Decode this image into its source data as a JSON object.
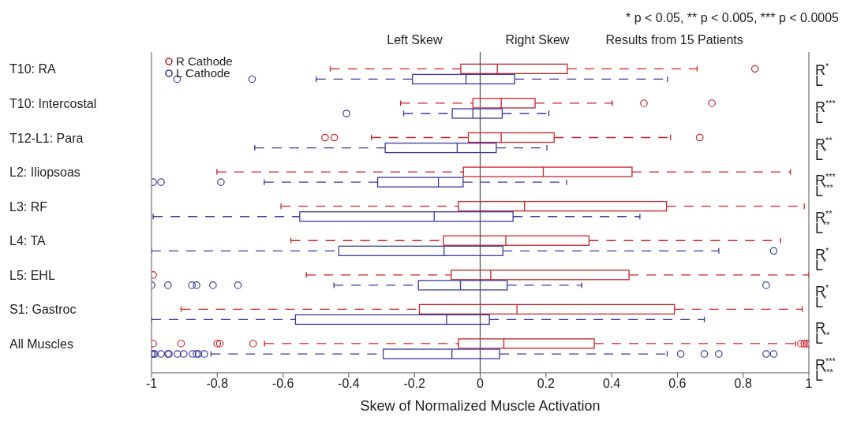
{
  "chart_data": {
    "type": "box",
    "orientation": "horizontal",
    "categories": [
      "T10: RA",
      "T10: Intercostal",
      "T12-L1: Para",
      "L2: Iliopsoas",
      "L3: RF",
      "L4: TA",
      "L5: EHL",
      "S1: Gastroc",
      "All Muscles"
    ],
    "series": [
      {
        "name": "R Cathode",
        "color": "#cc2229",
        "boxes": [
          {
            "low": -0.456,
            "q1": -0.059,
            "median": 0.052,
            "q3": 0.265,
            "high": 0.66,
            "outliers": [
              0.836
            ]
          },
          {
            "low": -0.242,
            "q1": -0.022,
            "median": 0.064,
            "q3": 0.167,
            "high": 0.402,
            "outliers": [
              0.498,
              0.705
            ]
          },
          {
            "low": -0.331,
            "q1": -0.036,
            "median": 0.064,
            "q3": 0.225,
            "high": 0.579,
            "outliers": [
              -0.472,
              -0.444,
              0.668
            ]
          },
          {
            "low": -0.801,
            "q1": -0.051,
            "median": 0.192,
            "q3": 0.462,
            "high": 0.944
          },
          {
            "low": -0.606,
            "q1": -0.066,
            "median": 0.135,
            "q3": 0.567,
            "high": 0.986
          },
          {
            "low": -0.576,
            "q1": -0.112,
            "median": 0.078,
            "q3": 0.331,
            "high": 0.914
          },
          {
            "low": -0.529,
            "q1": -0.088,
            "median": 0.032,
            "q3": 0.453,
            "high": 1.0,
            "outliers": [
              -0.995
            ]
          },
          {
            "low": -0.91,
            "q1": -0.185,
            "median": 0.112,
            "q3": 0.591,
            "high": 0.98
          },
          {
            "low": -0.656,
            "q1": -0.066,
            "median": 0.072,
            "q3": 0.347,
            "high": 0.96,
            "outliers": [
              -0.995,
              -0.91,
              -0.8,
              -0.792,
              -0.691,
              0.976,
              0.986,
              0.993,
              1.0
            ]
          }
        ]
      },
      {
        "name": "L Cathode",
        "color": "#3b3b9f",
        "boxes": [
          {
            "low": -0.499,
            "q1": -0.206,
            "median": -0.043,
            "q3": 0.105,
            "high": 0.57,
            "outliers": [
              -0.922,
              -0.694
            ]
          },
          {
            "low": -0.233,
            "q1": -0.085,
            "median": -0.022,
            "q3": 0.067,
            "high": 0.209,
            "outliers": [
              -0.407
            ]
          },
          {
            "low": -0.686,
            "q1": -0.289,
            "median": -0.07,
            "q3": 0.049,
            "high": 0.203
          },
          {
            "low": -0.657,
            "q1": -0.312,
            "median": -0.127,
            "q3": -0.052,
            "high": 0.263,
            "outliers": [
              -0.995,
              -0.971,
              -0.789
            ]
          },
          {
            "low": -0.995,
            "q1": -0.549,
            "median": -0.14,
            "q3": 0.1,
            "high": 0.486
          },
          {
            "low": -1.0,
            "q1": -0.43,
            "median": -0.11,
            "q3": 0.069,
            "high": 0.726,
            "outliers": [
              0.893
            ]
          },
          {
            "low": -0.445,
            "q1": -0.188,
            "median": -0.06,
            "q3": 0.082,
            "high": 0.309,
            "outliers": [
              -1.0,
              -0.95,
              -0.877,
              -0.863,
              -0.813,
              -0.737,
              0.87
            ]
          },
          {
            "low": -1.0,
            "q1": -0.562,
            "median": -0.102,
            "q3": 0.028,
            "high": 0.682
          },
          {
            "low": -0.819,
            "q1": -0.295,
            "median": -0.086,
            "q3": 0.059,
            "high": 0.569,
            "outliers": [
              -1.0,
              -0.995,
              -0.99,
              -0.971,
              -0.95,
              -0.947,
              -0.921,
              -0.902,
              -0.875,
              -0.863,
              -0.857,
              -0.839,
              0.61,
              0.682,
              0.726,
              0.87,
              0.893
            ]
          }
        ]
      }
    ],
    "xlabel": "Skew of Normalized Muscle Activation",
    "xlim": [
      -1,
      1
    ],
    "xticks": [
      -1,
      -0.8,
      -0.6,
      -0.4,
      -0.2,
      0,
      0.2,
      0.4,
      0.6,
      0.8,
      1
    ],
    "ref_lines": [
      {
        "axis": "x",
        "value": 0,
        "color": "#555555"
      }
    ],
    "legend": "top left",
    "marker": "circle",
    "line_style": "dashed",
    "annotations": [
      "* p < 0.05, ** p < 0.005, *** p < 0.0005",
      "Left Skew",
      "Right Skew",
      "Results from 15 Patients",
      "R$^{*}$",
      "L",
      "R$^{***}$",
      "L",
      "R$^{**}$",
      "L$^{*}$",
      "R$^{***}$",
      "L$^{***}$",
      "R$^{**}$",
      "L$^{**}$",
      "R$^{*}$",
      "L$^{*}$",
      "R$^{*}$",
      "L$^{*}$",
      "R",
      "L$^{**}$",
      "R$^{***}$",
      "L$^{***}$"
    ]
  }
}
